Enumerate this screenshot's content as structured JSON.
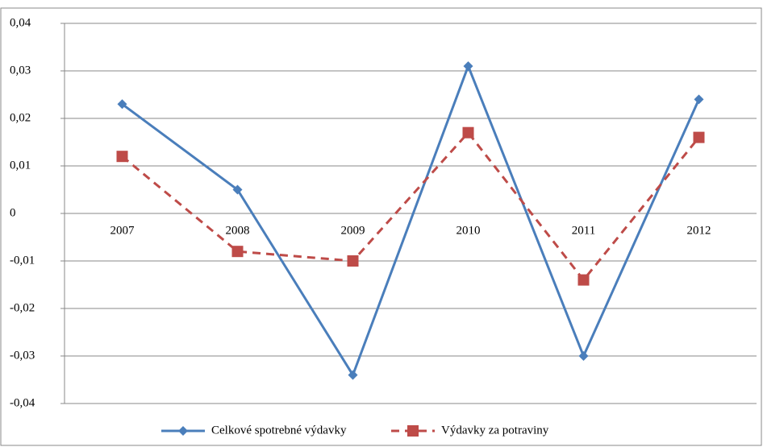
{
  "chart_data": {
    "type": "line",
    "categories": [
      "2007",
      "2008",
      "2009",
      "2010",
      "2011",
      "2012"
    ],
    "series": [
      {
        "name": "Celkové spotrebné výdavky",
        "color": "#4a7ebb",
        "line_style": "solid",
        "marker": "diamond",
        "values": [
          0.023,
          0.005,
          -0.034,
          0.031,
          -0.03,
          0.024
        ]
      },
      {
        "name": "Výdavky za potraviny",
        "color": "#be4b48",
        "line_style": "dashed",
        "marker": "square",
        "values": [
          0.012,
          -0.008,
          -0.01,
          0.017,
          -0.014,
          0.016
        ]
      }
    ],
    "ylim": [
      -0.04,
      0.04
    ],
    "yticks": [
      {
        "value": 0.04,
        "label": "0,04"
      },
      {
        "value": 0.03,
        "label": "0,03"
      },
      {
        "value": 0.02,
        "label": "0,02"
      },
      {
        "value": 0.01,
        "label": "0,01"
      },
      0,
      {
        "value": -0.01,
        "label": "-0,01"
      },
      {
        "value": -0.02,
        "label": "-0,02"
      },
      {
        "value": -0.03,
        "label": "-0,03"
      },
      {
        "value": -0.04,
        "label": "-0,04"
      }
    ],
    "grid": true,
    "legend": "bottom"
  }
}
